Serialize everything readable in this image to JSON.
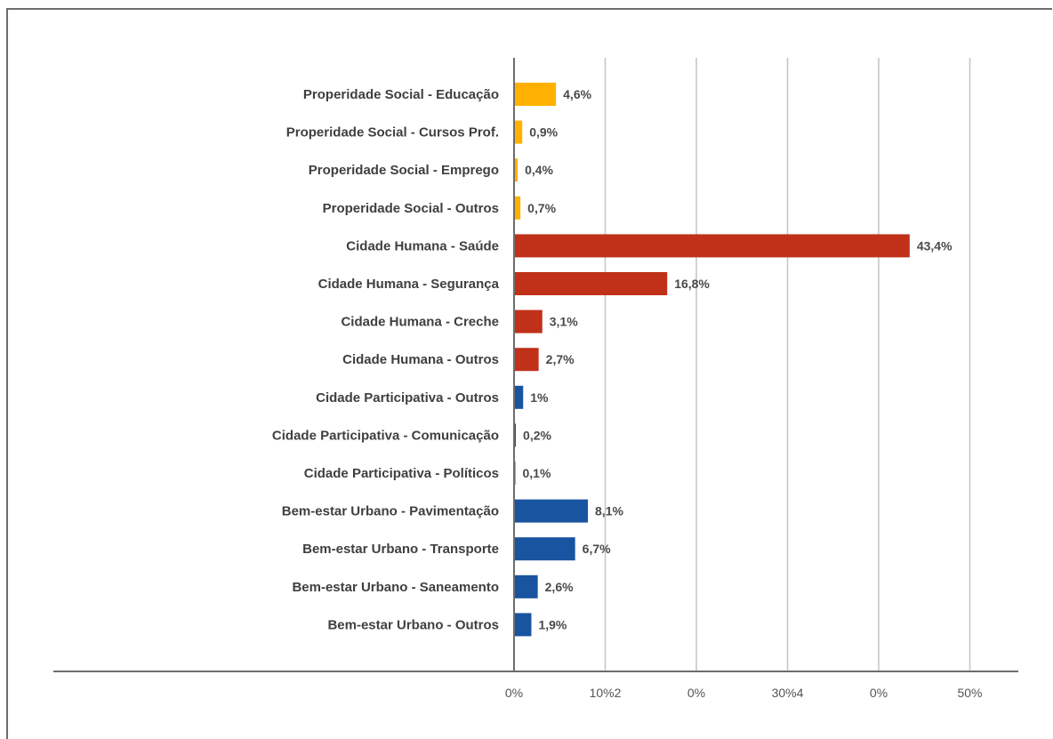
{
  "chart_data": {
    "type": "bar",
    "orientation": "horizontal",
    "title": "",
    "xlabel": "",
    "ylabel": "",
    "xlim": [
      0,
      50
    ],
    "grid": true,
    "tick_labels": [
      "0%",
      "10%2",
      "0%",
      "30%4",
      "0%",
      "50%"
    ],
    "categories": [
      "Properidade Social - Educação",
      "Properidade Social - Cursos Prof.",
      "Properidade Social - Emprego",
      "Properidade Social - Outros",
      "Cidade Humana - Saúde",
      "Cidade Humana - Segurança",
      "Cidade Humana - Creche",
      "Cidade Humana - Outros",
      "Cidade Participativa - Outros",
      "Cidade Participativa - Comunicação",
      "Cidade Participativa - Políticos",
      "Bem-estar Urbano - Pavimentação",
      "Bem-estar Urbano - Transporte",
      "Bem-estar Urbano - Saneamento",
      "Bem-estar Urbano - Outros"
    ],
    "values": [
      4.6,
      0.9,
      0.4,
      0.7,
      43.4,
      16.8,
      3.1,
      2.7,
      1,
      0.2,
      0.1,
      8.1,
      6.7,
      2.6,
      1.9
    ],
    "value_labels": [
      "4,6%",
      "0,9%",
      "0,4%",
      "0,7%",
      "43,4%",
      "16,8%",
      "3,1%",
      "2,7%",
      "1%",
      "0,2%",
      "0,1%",
      "8,1%",
      "6,7%",
      "2,6%",
      "1,9%"
    ],
    "bar_colors": [
      "#ffb000",
      "#ffb000",
      "#ffb000",
      "#ffb000",
      "#c1311a",
      "#c1311a",
      "#c1311a",
      "#c1311a",
      "#1854a0",
      "#1854a0",
      "#1854a0",
      "#1854a0",
      "#1854a0",
      "#1854a0",
      "#1854a0"
    ]
  },
  "colors": {
    "gridline": "#c4c4c4",
    "axis": "#6d6d6d",
    "category_text": "#3f3f3f",
    "value_text": "#4a4a4a"
  }
}
